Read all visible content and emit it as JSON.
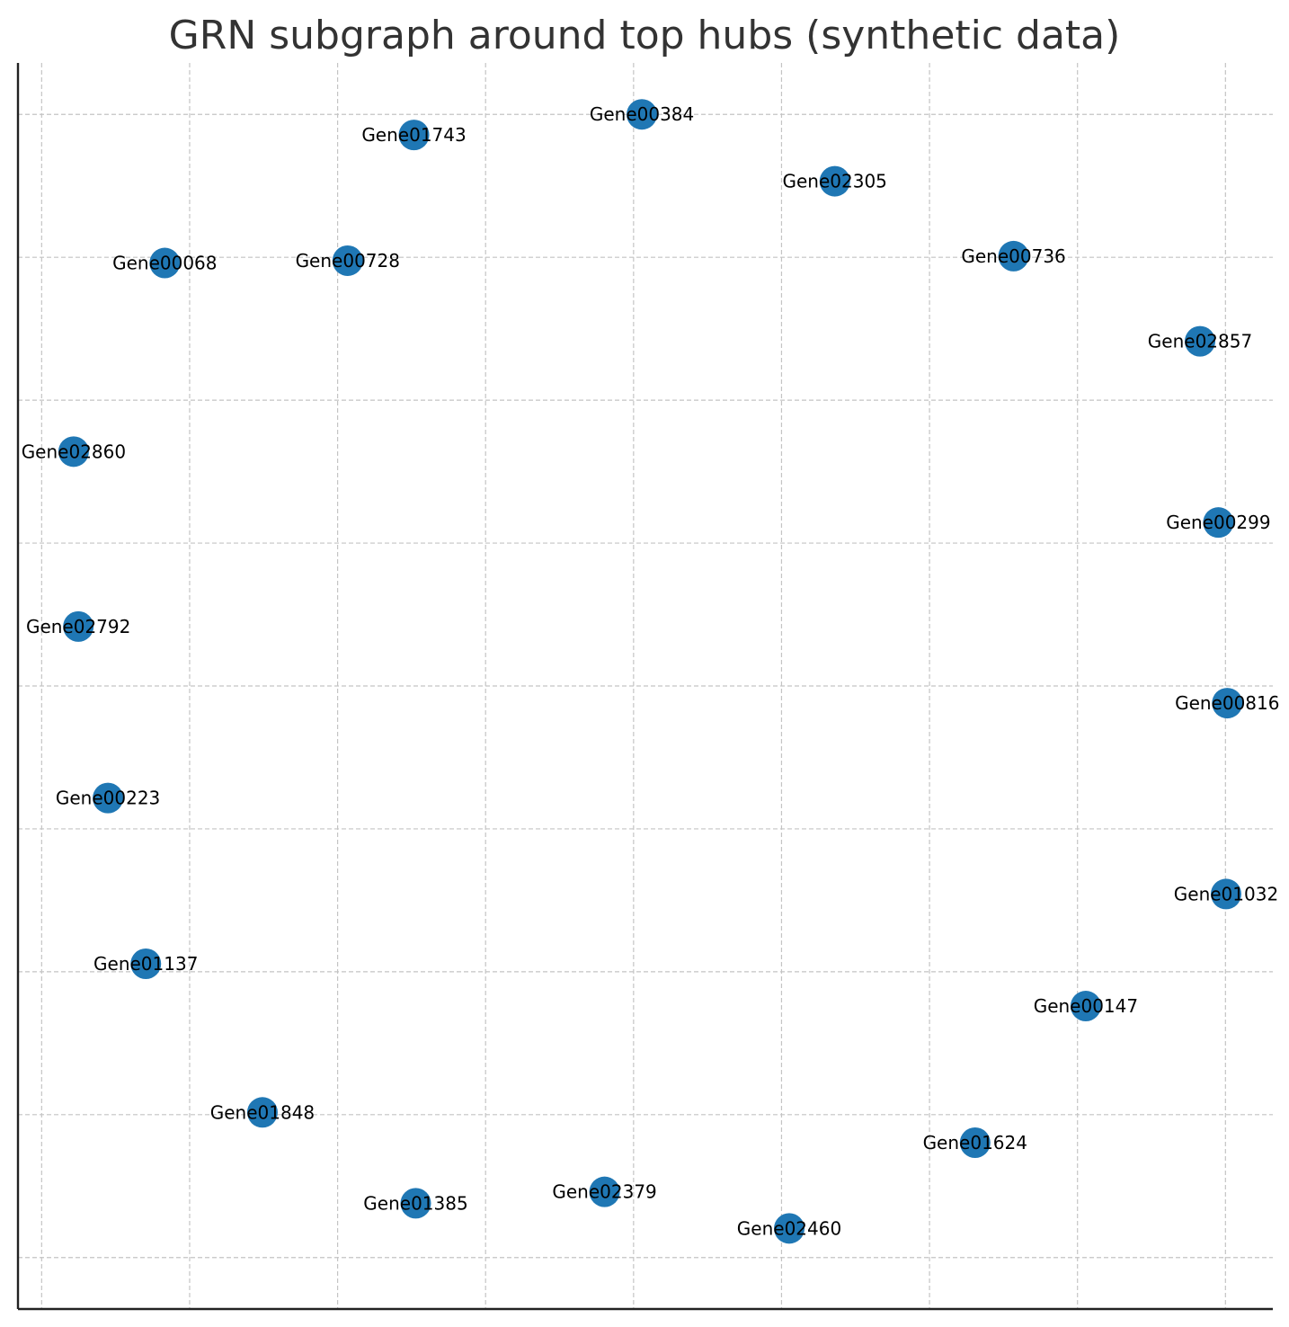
{
  "chart_data": {
    "type": "scatter",
    "title": "GRN subgraph around top hubs (synthetic data)",
    "xlabel": "",
    "ylabel": "",
    "xlim": [
      -1.04,
      1.08
    ],
    "ylim": [
      -1.09,
      1.09
    ],
    "grid": true,
    "axes_visible": [
      "left",
      "bottom"
    ],
    "tick_labels_visible": false,
    "marker_color": "#1f77b4",
    "nodes": [
      {
        "label": "Gene00384",
        "x": 0.014,
        "y": 1.0
      },
      {
        "label": "Gene01743",
        "x": -0.371,
        "y": 0.964
      },
      {
        "label": "Gene02305",
        "x": 0.34,
        "y": 0.883
      },
      {
        "label": "Gene00068",
        "x": -0.792,
        "y": 0.74
      },
      {
        "label": "Gene00728",
        "x": -0.483,
        "y": 0.744
      },
      {
        "label": "Gene00736",
        "x": 0.642,
        "y": 0.752
      },
      {
        "label": "Gene02857",
        "x": 0.957,
        "y": 0.603
      },
      {
        "label": "Gene02860",
        "x": -0.946,
        "y": 0.41
      },
      {
        "label": "Gene00299",
        "x": 0.988,
        "y": 0.286
      },
      {
        "label": "Gene02792",
        "x": -0.938,
        "y": 0.104
      },
      {
        "label": "Gene00816",
        "x": 1.003,
        "y": -0.03
      },
      {
        "label": "Gene00223",
        "x": -0.888,
        "y": -0.196
      },
      {
        "label": "Gene01032",
        "x": 1.001,
        "y": -0.364
      },
      {
        "label": "Gene01137",
        "x": -0.824,
        "y": -0.486
      },
      {
        "label": "Gene00147",
        "x": 0.764,
        "y": -0.56
      },
      {
        "label": "Gene01848",
        "x": -0.627,
        "y": -0.746
      },
      {
        "label": "Gene01624",
        "x": 0.577,
        "y": -0.799
      },
      {
        "label": "Gene02379",
        "x": -0.049,
        "y": -0.885
      },
      {
        "label": "Gene01385",
        "x": -0.368,
        "y": -0.905
      },
      {
        "label": "Gene02460",
        "x": 0.263,
        "y": -0.949
      }
    ]
  }
}
